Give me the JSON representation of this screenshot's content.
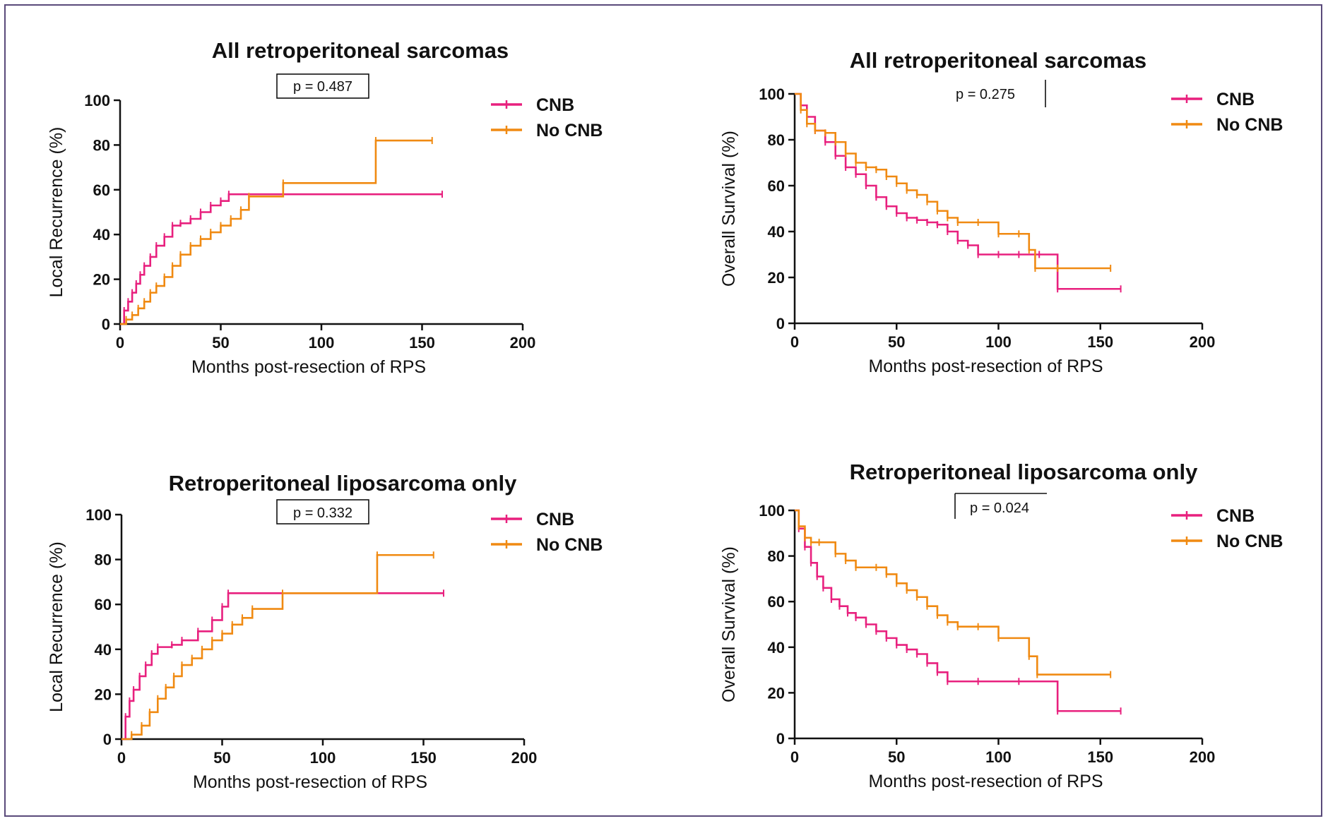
{
  "figure": {
    "colors": {
      "CNB": "#e8207e",
      "No CNB": "#f08a12",
      "axis": "#111111"
    }
  },
  "chart_data": [
    {
      "type": "line",
      "title": "All retroperitoneal sarcomas",
      "p_value": "p = 0.487",
      "xlabel": "Months post-resection of RPS",
      "ylabel": "Local Recurrence (%)",
      "xlim": [
        0,
        200
      ],
      "ylim": [
        0,
        100
      ],
      "xticks": [
        "0",
        "50",
        "100",
        "150",
        "200"
      ],
      "yticks": [
        "0",
        "20",
        "40",
        "60",
        "80",
        "100"
      ],
      "legend": [
        "CNB",
        "No CNB"
      ],
      "series": [
        {
          "name": "CNB",
          "x": [
            0,
            2,
            4,
            6,
            8,
            10,
            12,
            15,
            18,
            22,
            26,
            30,
            35,
            40,
            45,
            50,
            54,
            160
          ],
          "y": [
            0,
            6,
            10,
            14,
            18,
            22,
            26,
            30,
            35,
            39,
            44,
            45,
            47,
            50,
            53,
            55,
            58,
            58
          ]
        },
        {
          "name": "No CNB",
          "x": [
            0,
            3,
            6,
            9,
            12,
            15,
            18,
            22,
            26,
            30,
            35,
            40,
            45,
            50,
            55,
            60,
            64,
            81,
            127,
            155
          ],
          "y": [
            0,
            2,
            4,
            7,
            10,
            14,
            17,
            21,
            26,
            31,
            35,
            38,
            41,
            44,
            47,
            51,
            57,
            63,
            82,
            82
          ]
        }
      ]
    },
    {
      "type": "line",
      "title": "All retroperitoneal sarcomas",
      "p_value": "p = 0.275",
      "xlabel": "Months post-resection of RPS",
      "ylabel": "Overall Survival (%)",
      "xlim": [
        0,
        200
      ],
      "ylim": [
        0,
        100
      ],
      "xticks": [
        "0",
        "50",
        "100",
        "150",
        "200"
      ],
      "yticks": [
        "0",
        "20",
        "40",
        "60",
        "80",
        "100"
      ],
      "legend": [
        "CNB",
        "No CNB"
      ],
      "series": [
        {
          "name": "CNB",
          "x": [
            0,
            3,
            6,
            10,
            15,
            20,
            25,
            30,
            35,
            40,
            45,
            50,
            55,
            60,
            65,
            70,
            75,
            80,
            85,
            90,
            100,
            110,
            120,
            129,
            160
          ],
          "y": [
            100,
            95,
            90,
            84,
            79,
            73,
            68,
            65,
            60,
            55,
            51,
            48,
            46,
            45,
            44,
            43,
            40,
            36,
            34,
            30,
            30,
            30,
            30,
            15,
            15
          ]
        },
        {
          "name": "No CNB",
          "x": [
            0,
            3,
            6,
            10,
            15,
            20,
            25,
            30,
            35,
            40,
            45,
            50,
            55,
            60,
            65,
            70,
            75,
            80,
            90,
            100,
            110,
            115,
            118,
            129,
            155
          ],
          "y": [
            100,
            93,
            87,
            84,
            83,
            79,
            74,
            70,
            68,
            67,
            64,
            61,
            58,
            56,
            53,
            49,
            46,
            44,
            44,
            39,
            39,
            32,
            24,
            24,
            24
          ]
        }
      ]
    },
    {
      "type": "line",
      "title": "Retroperitoneal liposarcoma only",
      "p_value": "p = 0.332",
      "xlabel": "Months post-resection of RPS",
      "ylabel": "Local Recurrence (%)",
      "xlim": [
        0,
        200
      ],
      "ylim": [
        0,
        100
      ],
      "xticks": [
        "0",
        "50",
        "100",
        "150",
        "200"
      ],
      "yticks": [
        "0",
        "20",
        "40",
        "60",
        "80",
        "100"
      ],
      "legend": [
        "CNB",
        "No CNB"
      ],
      "series": [
        {
          "name": "CNB",
          "x": [
            0,
            2,
            4,
            6,
            9,
            12,
            15,
            18,
            25,
            30,
            38,
            45,
            50,
            53,
            160
          ],
          "y": [
            0,
            10,
            17,
            22,
            28,
            33,
            38,
            41,
            42,
            44,
            48,
            53,
            59,
            65,
            65
          ]
        },
        {
          "name": "No CNB",
          "x": [
            0,
            5,
            10,
            14,
            18,
            22,
            26,
            30,
            35,
            40,
            45,
            50,
            55,
            60,
            65,
            80,
            127,
            155
          ],
          "y": [
            0,
            2,
            6,
            12,
            18,
            23,
            28,
            33,
            36,
            40,
            44,
            47,
            51,
            54,
            58,
            65,
            82,
            82
          ]
        }
      ]
    },
    {
      "type": "line",
      "title": "Retroperitoneal liposarcoma only",
      "p_value": "p = 0.024",
      "xlabel": "Months post-resection of RPS",
      "ylabel": "Overall Survival (%)",
      "xlim": [
        0,
        200
      ],
      "ylim": [
        0,
        100
      ],
      "xticks": [
        "0",
        "50",
        "100",
        "150",
        "200"
      ],
      "yticks": [
        "0",
        "20",
        "40",
        "60",
        "80",
        "100"
      ],
      "legend": [
        "CNB",
        "No CNB"
      ],
      "series": [
        {
          "name": "CNB",
          "x": [
            0,
            2,
            5,
            8,
            11,
            14,
            18,
            22,
            26,
            30,
            35,
            40,
            45,
            50,
            55,
            60,
            65,
            70,
            75,
            90,
            110,
            129,
            160
          ],
          "y": [
            100,
            92,
            84,
            77,
            71,
            66,
            61,
            58,
            55,
            53,
            50,
            47,
            44,
            41,
            39,
            37,
            33,
            29,
            25,
            25,
            25,
            12,
            12
          ]
        },
        {
          "name": "No CNB",
          "x": [
            0,
            2,
            5,
            8,
            12,
            20,
            25,
            30,
            40,
            45,
            50,
            55,
            60,
            65,
            70,
            75,
            80,
            90,
            100,
            115,
            119,
            155
          ],
          "y": [
            100,
            93,
            88,
            86,
            86,
            81,
            78,
            75,
            75,
            72,
            68,
            65,
            62,
            58,
            54,
            51,
            49,
            49,
            44,
            36,
            28,
            28
          ]
        }
      ]
    }
  ]
}
